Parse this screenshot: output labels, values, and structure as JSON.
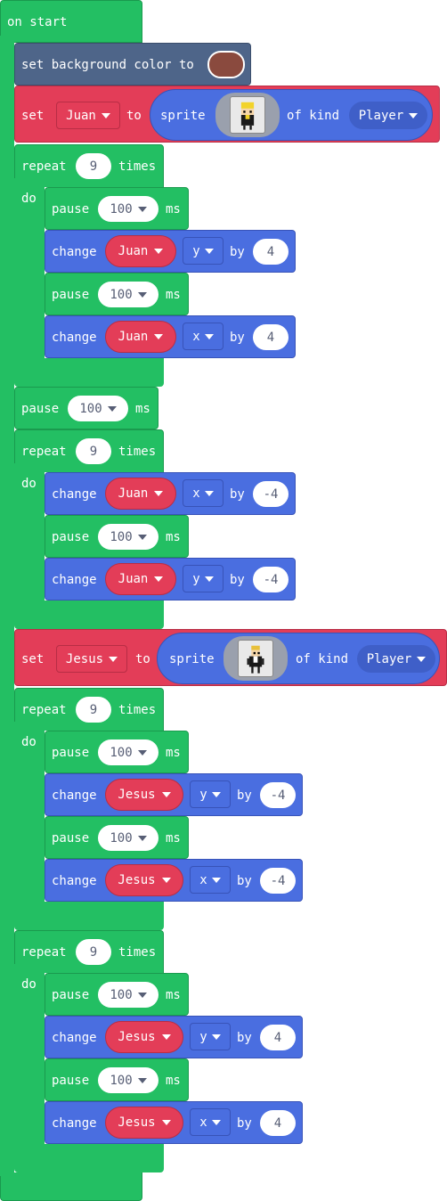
{
  "on_start": {
    "label": "on start"
  },
  "set_bg": {
    "label": "set background color to",
    "color": "#8a4a3e"
  },
  "set_juan": {
    "set": "set",
    "var": "Juan",
    "to": "to",
    "sprite": "sprite",
    "of_kind": "of kind",
    "kind": "Player"
  },
  "set_jesus": {
    "set": "set",
    "var": "Jesus",
    "to": "to",
    "sprite": "sprite",
    "of_kind": "of kind",
    "kind": "Player"
  },
  "words": {
    "repeat": "repeat",
    "times": "times",
    "do": "do",
    "pause": "pause",
    "ms": "ms",
    "change": "change",
    "by": "by"
  },
  "loop1": {
    "count": "9",
    "pause1": "100",
    "c1": {
      "var": "Juan",
      "axis": "y",
      "by": "4"
    },
    "pause2": "100",
    "c2": {
      "var": "Juan",
      "axis": "x",
      "by": "4"
    }
  },
  "mid_pause": "100",
  "loop2": {
    "count": "9",
    "c1": {
      "var": "Juan",
      "axis": "x",
      "by": "-4"
    },
    "pause1": "100",
    "c2": {
      "var": "Juan",
      "axis": "y",
      "by": "-4"
    }
  },
  "loop3": {
    "count": "9",
    "pause1": "100",
    "c1": {
      "var": "Jesus",
      "axis": "y",
      "by": "-4"
    },
    "pause2": "100",
    "c2": {
      "var": "Jesus",
      "axis": "x",
      "by": "-4"
    }
  },
  "loop4": {
    "count": "9",
    "pause1": "100",
    "c1": {
      "var": "Jesus",
      "axis": "y",
      "by": "4"
    },
    "pause2": "100",
    "c2": {
      "var": "Jesus",
      "axis": "x",
      "by": "4"
    }
  }
}
